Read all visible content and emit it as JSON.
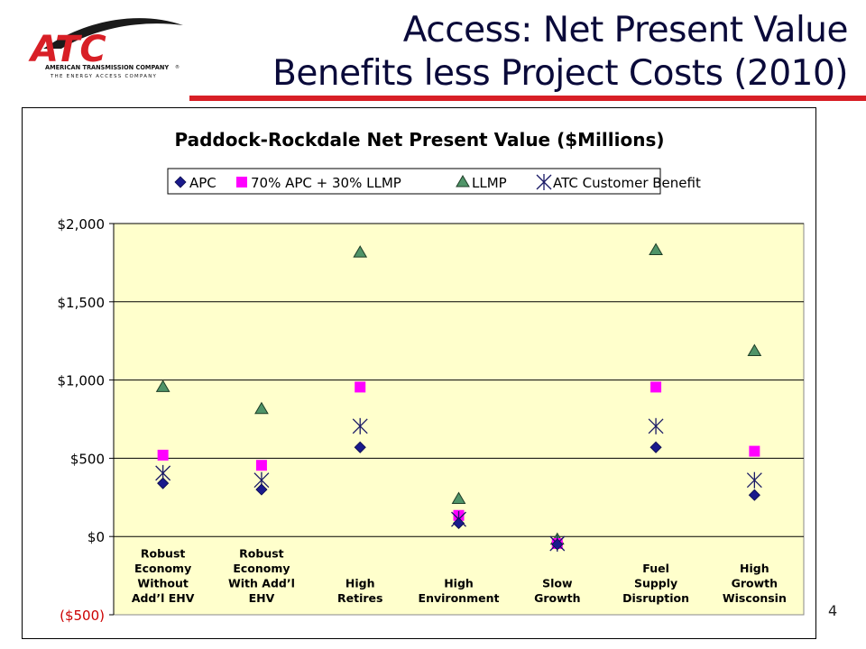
{
  "slide": {
    "title_line1": "Access: Net Present Value",
    "title_line2": "Benefits less Project Costs (2010)",
    "page_number": "4"
  },
  "logo": {
    "mark": "ATC",
    "company": "AMERICAN TRANSMISSION COMPANY",
    "registered": "®",
    "tagline": "THE ENERGY ACCESS COMPANY"
  },
  "colors": {
    "accent_red": "#d81f26",
    "title_navy": "#0a0a3a",
    "plot_bg": "#ffffcc",
    "apc": "#1a1a8c",
    "blend": "#ff00ff",
    "llmp": "#4f9468",
    "atc": "#1a1a66"
  },
  "chart_data": {
    "type": "scatter",
    "title": "Paddock-Rockdale Net Present Value ($Millions)",
    "categories": [
      "Robust Economy Without Add’l EHV",
      "Robust Economy With Add’l EHV",
      "High Retires",
      "High Environment",
      "Slow Growth",
      "Fuel Supply Disruption",
      "High Growth Wisconsin"
    ],
    "category_lines": [
      [
        "Robust",
        "Economy",
        "Without",
        "Add’l EHV"
      ],
      [
        "Robust",
        "Economy",
        "With Add’l",
        "EHV"
      ],
      [
        "High",
        "Retires"
      ],
      [
        "High",
        "Environment"
      ],
      [
        "Slow",
        "Growth"
      ],
      [
        "Fuel",
        "Supply",
        "Disruption"
      ],
      [
        "High",
        "Growth",
        "Wisconsin"
      ]
    ],
    "series": [
      {
        "name": "APC",
        "marker": "diamond",
        "values": [
          340,
          300,
          570,
          85,
          -50,
          570,
          265
        ]
      },
      {
        "name": "70% APC + 30% LLMP",
        "marker": "square",
        "values": [
          520,
          455,
          955,
          135,
          -45,
          955,
          545
        ]
      },
      {
        "name": "LLMP",
        "marker": "triangle",
        "values": [
          955,
          815,
          1815,
          240,
          -20,
          1830,
          1185
        ]
      },
      {
        "name": "ATC Customer Benefit",
        "marker": "asterisk",
        "values": [
          405,
          360,
          705,
          110,
          -45,
          705,
          360
        ]
      }
    ],
    "ylim": [
      -500,
      2000
    ],
    "yticks": [
      2000,
      1500,
      1000,
      500,
      0,
      -500
    ],
    "ytick_labels": [
      "$2,000",
      "$1,500",
      "$1,000",
      "$500",
      "$0",
      "($500)"
    ],
    "grid": true,
    "legend": "top"
  }
}
